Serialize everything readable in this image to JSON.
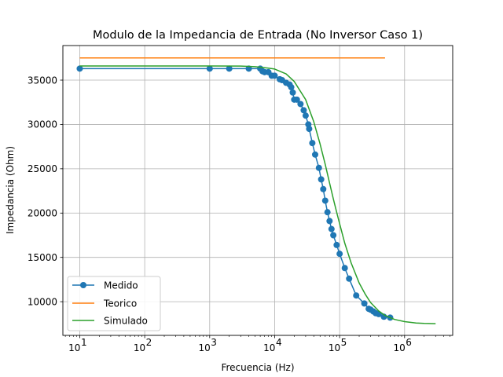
{
  "chart_data": {
    "type": "line",
    "title": "Modulo de la Impedancia de Entrada (No Inversor Caso 1)",
    "xlabel": "Frecuencia (Hz)",
    "ylabel": "Impedancia (Ohm)",
    "xscale": "log",
    "xlim": [
      5.5,
      5500000
    ],
    "ylim": [
      6200,
      38900
    ],
    "grid": true,
    "legend_position": "lower-left",
    "x_ticks": [
      {
        "value": 10,
        "base": "10",
        "exp": "1"
      },
      {
        "value": 100,
        "base": "10",
        "exp": "2"
      },
      {
        "value": 1000,
        "base": "10",
        "exp": "3"
      },
      {
        "value": 10000,
        "base": "10",
        "exp": "4"
      },
      {
        "value": 100000,
        "base": "10",
        "exp": "5"
      },
      {
        "value": 1000000,
        "base": "10",
        "exp": "6"
      }
    ],
    "y_ticks": [
      {
        "value": 10000,
        "label": "10000"
      },
      {
        "value": 15000,
        "label": "15000"
      },
      {
        "value": 20000,
        "label": "20000"
      },
      {
        "value": 25000,
        "label": "25000"
      },
      {
        "value": 30000,
        "label": "30000"
      },
      {
        "value": 35000,
        "label": "35000"
      }
    ],
    "series": [
      {
        "name": "Medido",
        "color": "#1f77b4",
        "marker": "circle",
        "x": [
          10,
          1000,
          2000,
          4000,
          6000,
          6500,
          7000,
          8000,
          9000,
          10000,
          12000,
          13000,
          15000,
          17000,
          18000,
          19000,
          20000,
          22000,
          25000,
          28000,
          30000,
          33000,
          34000,
          38000,
          42000,
          48000,
          52000,
          56000,
          60000,
          65000,
          70000,
          75000,
          80000,
          90000,
          100000,
          120000,
          140000,
          180000,
          240000,
          280000,
          300000,
          330000,
          360000,
          400000,
          480000,
          600000
        ],
        "y": [
          36300,
          36300,
          36300,
          36300,
          36300,
          36000,
          35900,
          35900,
          35500,
          35500,
          35100,
          35000,
          34700,
          34500,
          34200,
          33600,
          32800,
          32800,
          32300,
          31600,
          31000,
          30000,
          29500,
          27900,
          26600,
          25100,
          23800,
          22700,
          21400,
          20100,
          19100,
          18200,
          17500,
          16400,
          15400,
          13800,
          12600,
          10700,
          9800,
          9200,
          9100,
          8900,
          8700,
          8600,
          8300,
          8200
        ]
      },
      {
        "name": "Teorico",
        "color": "#ff7f0e",
        "marker": "none",
        "x": [
          10,
          500000
        ],
        "y": [
          37500,
          37500
        ]
      },
      {
        "name": "Simulado",
        "color": "#2ca02c",
        "marker": "none",
        "x": [
          10,
          100,
          1000,
          3000,
          5000,
          8000,
          10000,
          15000,
          20000,
          30000,
          40000,
          50000,
          60000,
          70000,
          80000,
          90000,
          100000,
          120000,
          150000,
          200000,
          250000,
          300000,
          400000,
          500000,
          700000,
          1000000,
          1500000,
          2000000,
          3000000
        ],
        "y": [
          36600,
          36600,
          36600,
          36580,
          36520,
          36350,
          36250,
          35700,
          34850,
          32800,
          30300,
          27800,
          25500,
          23400,
          21600,
          20100,
          18800,
          16600,
          14400,
          12100,
          10800,
          9900,
          8950,
          8450,
          8000,
          7750,
          7600,
          7550,
          7520
        ]
      }
    ]
  }
}
